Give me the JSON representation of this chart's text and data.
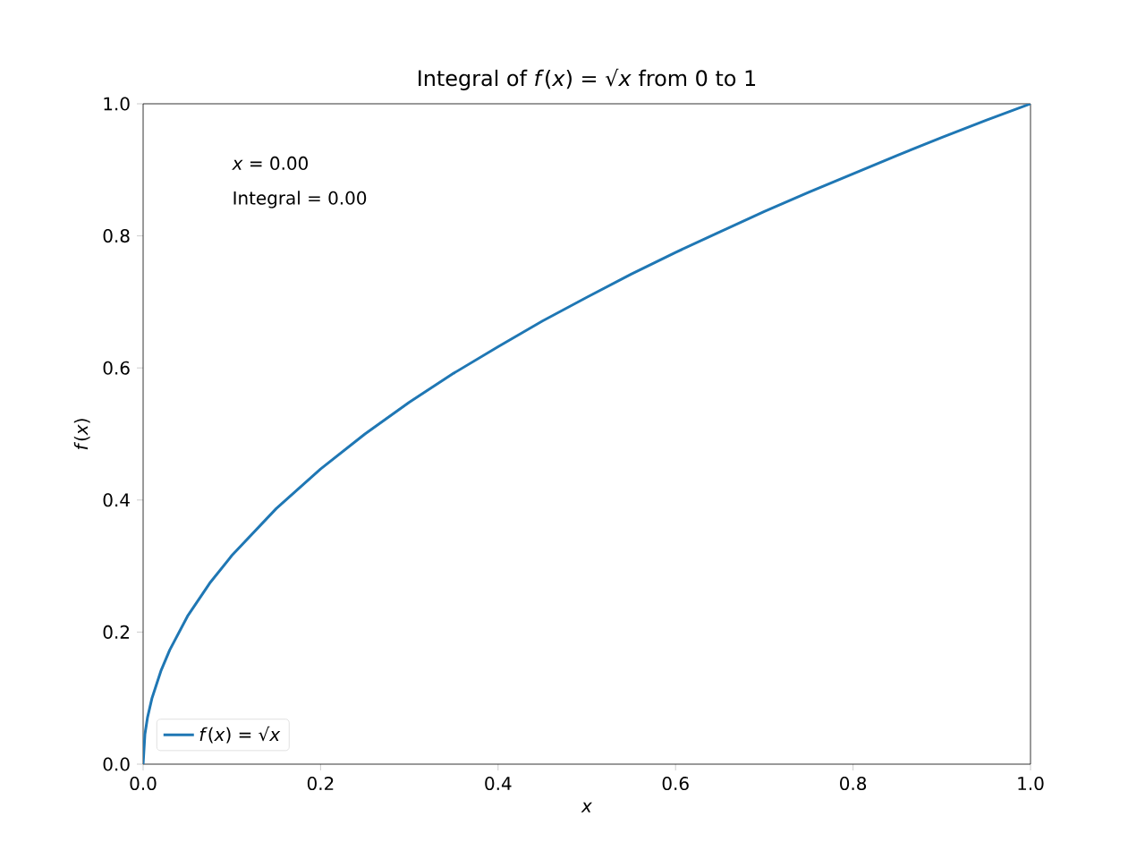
{
  "chart_data": {
    "type": "line",
    "title": "Integral of *f*(*x*) = √*x* from 0 to 1",
    "xlabel": "*x*",
    "ylabel": "*f*(*x*)",
    "annotations": [
      "*x* = 0.00",
      "Integral = 0.00"
    ],
    "x": [
      0,
      0.002,
      0.005,
      0.01,
      0.02,
      0.03,
      0.05,
      0.075,
      0.1,
      0.15,
      0.2,
      0.25,
      0.3,
      0.35,
      0.4,
      0.45,
      0.5,
      0.55,
      0.6,
      0.65,
      0.7,
      0.75,
      0.8,
      0.85,
      0.9,
      0.95,
      1.0
    ],
    "series": [
      {
        "name": "*f*(*x*) = √*x*",
        "color": "#1f77b4",
        "values": [
          0,
          0.045,
          0.071,
          0.1,
          0.141,
          0.173,
          0.224,
          0.274,
          0.316,
          0.387,
          0.447,
          0.5,
          0.548,
          0.592,
          0.632,
          0.671,
          0.707,
          0.742,
          0.775,
          0.806,
          0.837,
          0.866,
          0.894,
          0.922,
          0.949,
          0.975,
          1.0
        ]
      }
    ],
    "xlim": [
      0,
      1
    ],
    "ylim": [
      0,
      1
    ],
    "xticks": [
      {
        "value": 0,
        "label": "0.0"
      },
      {
        "value": 0.2,
        "label": "0.2"
      },
      {
        "value": 0.4,
        "label": "0.4"
      },
      {
        "value": 0.6,
        "label": "0.6"
      },
      {
        "value": 0.8,
        "label": "0.8"
      },
      {
        "value": 1.0,
        "label": "1.0"
      }
    ],
    "yticks": [
      {
        "value": 0,
        "label": "0.0"
      },
      {
        "value": 0.2,
        "label": "0.2"
      },
      {
        "value": 0.4,
        "label": "0.4"
      },
      {
        "value": 0.6,
        "label": "0.6"
      },
      {
        "value": 0.8,
        "label": "0.8"
      },
      {
        "value": 1.0,
        "label": "1.0"
      }
    ],
    "legend": "bottom left",
    "grid": false,
    "marker": "none",
    "line_style": "solid"
  }
}
